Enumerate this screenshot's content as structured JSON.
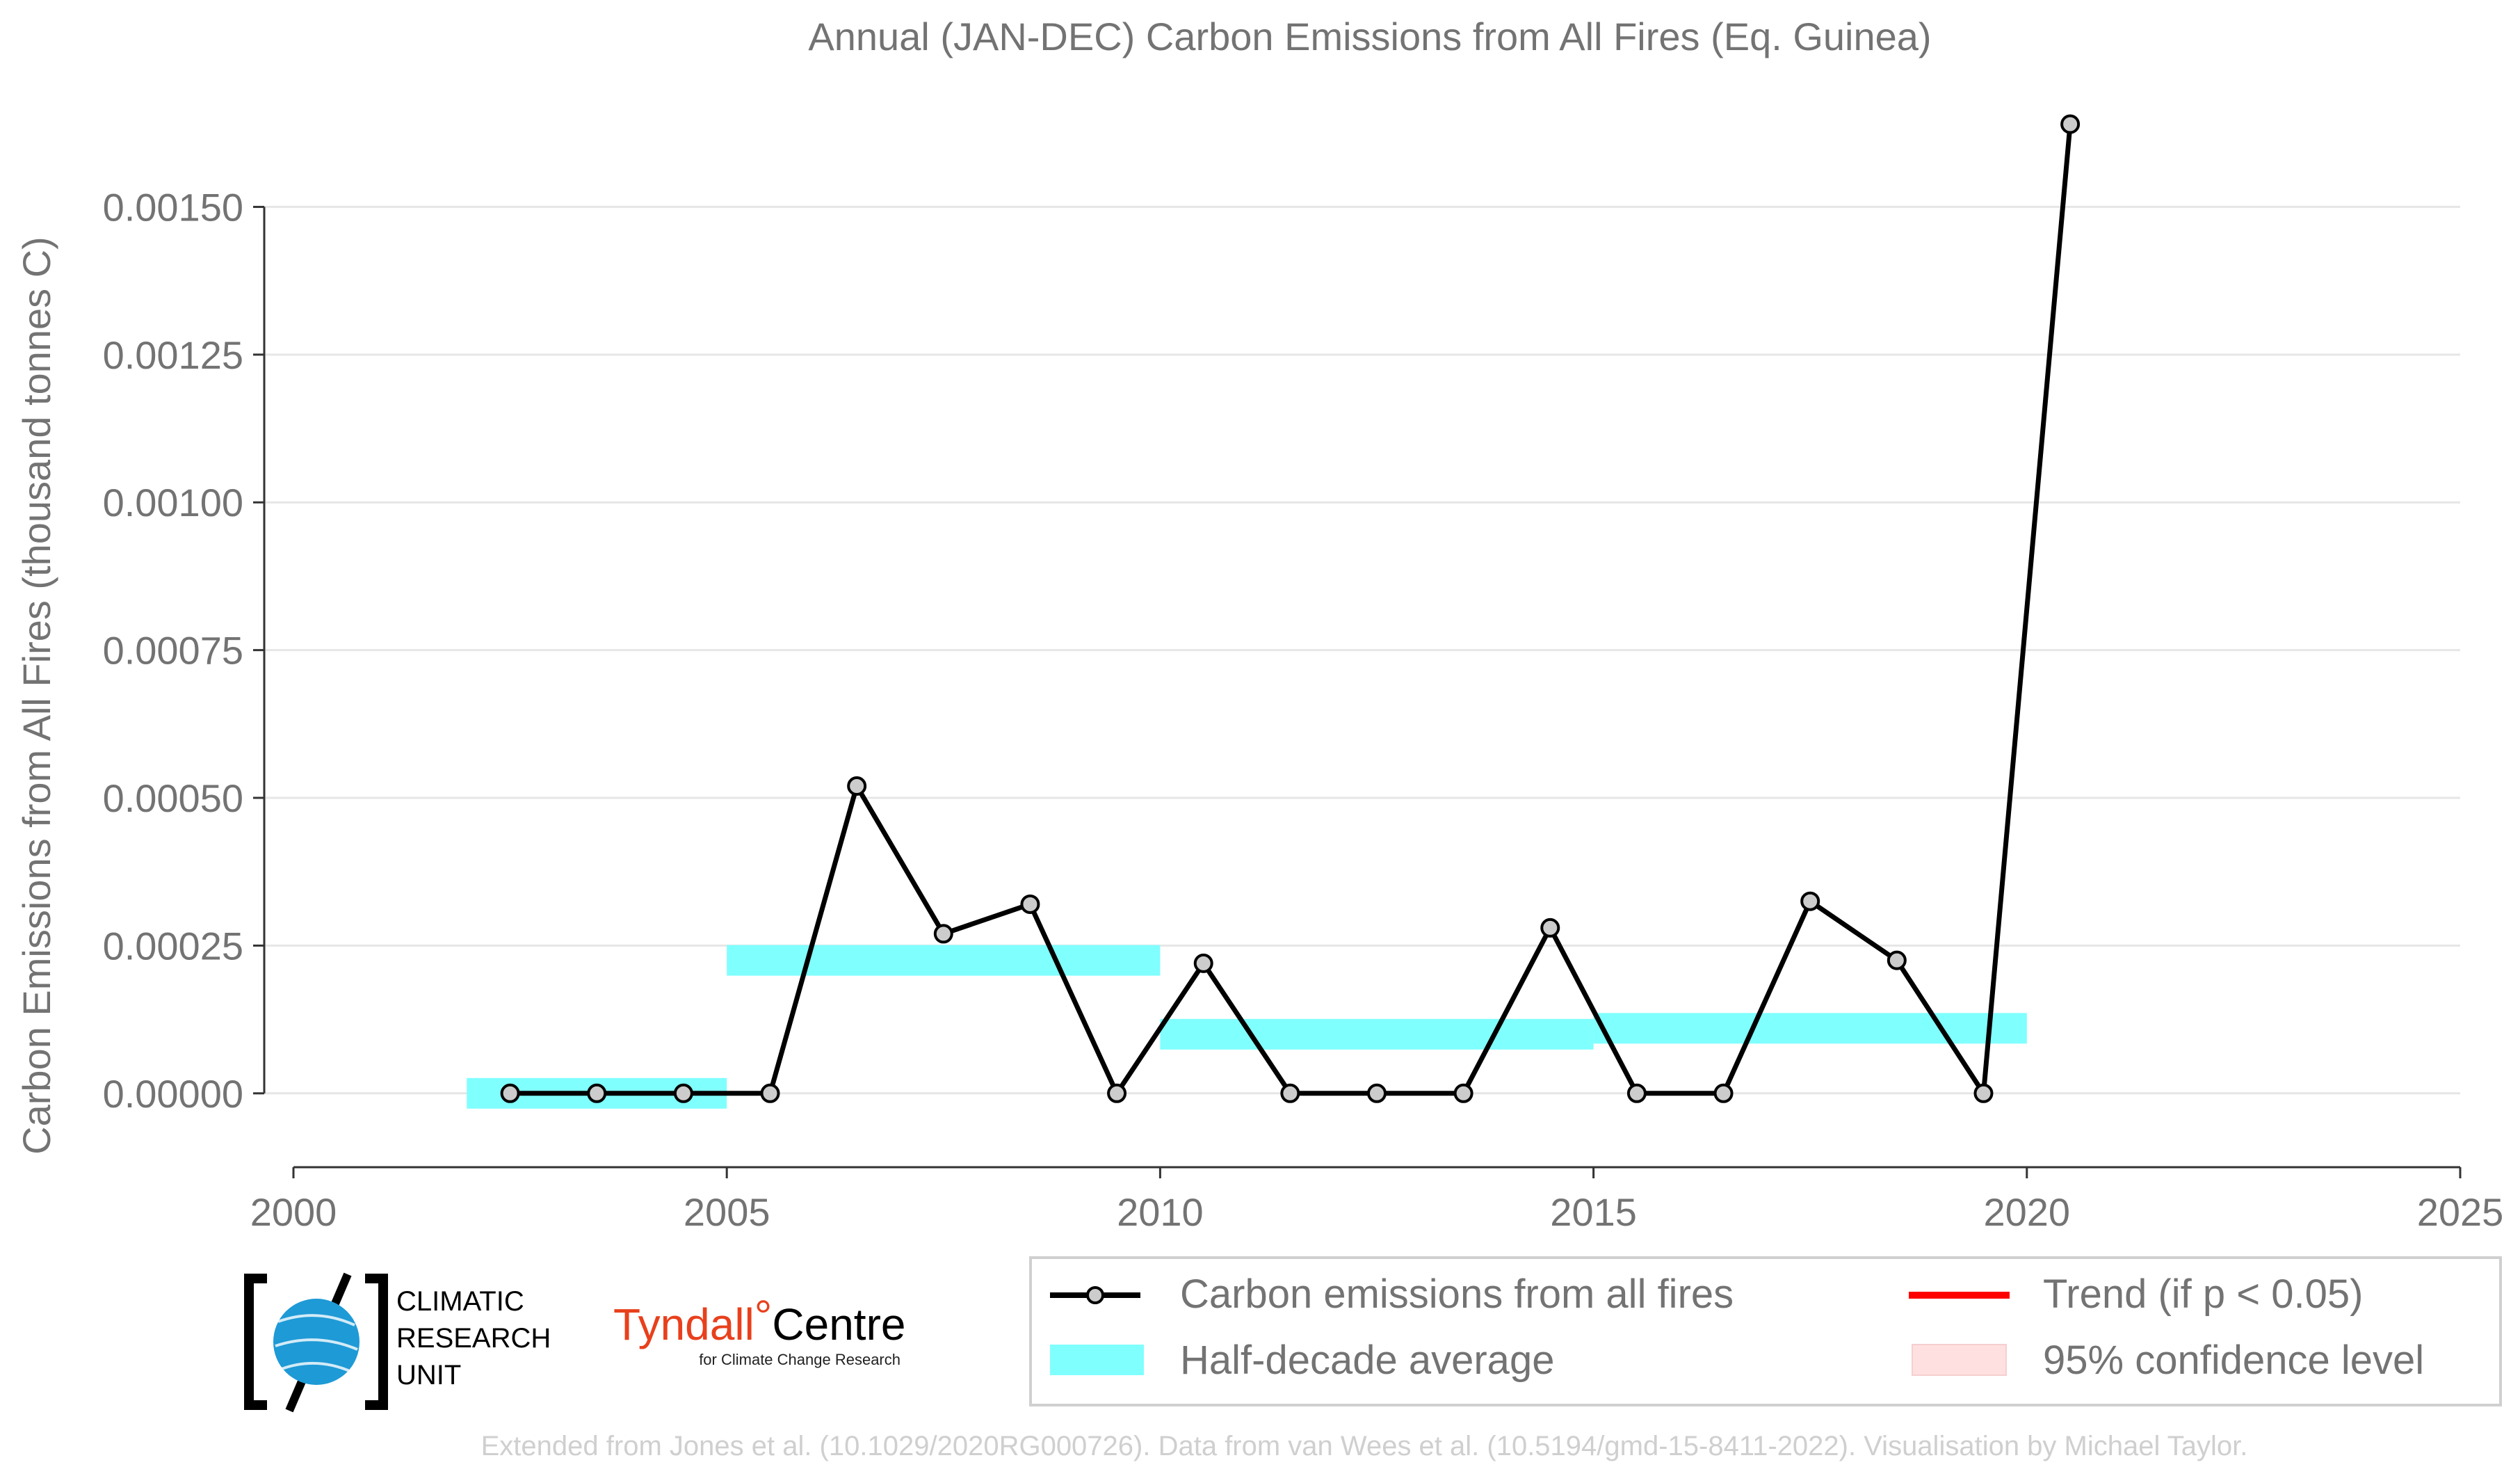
{
  "chart_data": {
    "type": "line",
    "title": "Annual (JAN-DEC) Carbon Emissions from All Fires (Eq. Guinea)",
    "xlabel": "",
    "ylabel": "Carbon Emissions from All Fires (thousand tonnes C)",
    "xlim": [
      2000,
      2025
    ],
    "ylim": [
      -0.000125,
      0.00165
    ],
    "x_ticks": [
      2000,
      2005,
      2010,
      2015,
      2020,
      2025
    ],
    "x_tick_labels": [
      "2000",
      "2005",
      "2010",
      "2015",
      "2020",
      "2025"
    ],
    "y_ticks": [
      0.0,
      0.00025,
      0.0005,
      0.00075,
      0.001,
      0.00125,
      0.0015
    ],
    "y_tick_labels": [
      "0.00000",
      "0.00025",
      "0.00050",
      "0.00075",
      "0.00100",
      "0.00125",
      "0.00150"
    ],
    "grid": "horizontal",
    "series": [
      {
        "name": "Carbon emissions from all fires",
        "color": "#000000",
        "marker_fill": "#cccccc",
        "x": [
          2002.5,
          2003.5,
          2004.5,
          2005.5,
          2006.5,
          2007.5,
          2008.5,
          2009.5,
          2010.5,
          2011.5,
          2012.5,
          2013.5,
          2014.5,
          2015.5,
          2016.5,
          2017.5,
          2018.5,
          2019.5,
          2020.5
        ],
        "values": [
          0.0,
          0.0,
          0.0,
          0.0,
          0.00052,
          0.00027,
          0.00032,
          0.0,
          0.00022,
          0.0,
          0.0,
          0.0,
          0.00028,
          0.0,
          0.0,
          0.000325,
          0.000225,
          0.0,
          0.00164
        ]
      }
    ],
    "half_decade_average": {
      "name": "Half-decade average",
      "color": "#80ffff",
      "segments": [
        {
          "x_start": 2002,
          "x_end": 2005,
          "value": 0.0
        },
        {
          "x_start": 2005,
          "x_end": 2010,
          "value": 0.000225
        },
        {
          "x_start": 2010,
          "x_end": 2015,
          "value": 0.0001
        },
        {
          "x_start": 2015,
          "x_end": 2020,
          "value": 0.00011
        }
      ]
    },
    "legend": {
      "placement": "bottom-right",
      "entries": [
        {
          "label": "Carbon emissions from all fires",
          "kind": "line-marker",
          "color": "#000000"
        },
        {
          "label": "Trend (if p < 0.05)",
          "kind": "line",
          "color": "#ff0000"
        },
        {
          "label": "Half-decade average",
          "kind": "patch",
          "color": "#80ffff"
        },
        {
          "label": "95% confidence level",
          "kind": "patch",
          "color": "#ffe0e0"
        }
      ]
    },
    "footer": "Extended from Jones et al. (10.1029/2020RG000726). Data from van Wees et al. (10.5194/gmd-15-8411-2022). Visualisation by Michael Taylor."
  },
  "logos": {
    "cru": {
      "lines": [
        "CLIMATIC",
        "RESEARCH",
        "UNIT"
      ],
      "globe_color": "#1e9ad6"
    },
    "tyndall": {
      "name_left": "Tyndall",
      "degree": "°",
      "name_right": "Centre",
      "tagline": "for Climate Change Research",
      "accent": "#e8401c"
    }
  },
  "colors": {
    "text_gray": "#737373",
    "grid": "#e6e6e6",
    "footer": "#cfcfcf"
  }
}
